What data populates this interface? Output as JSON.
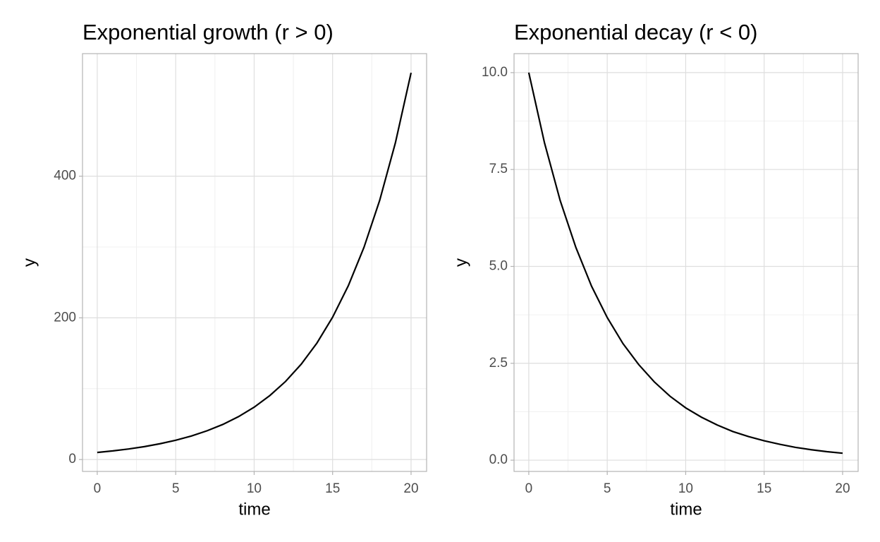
{
  "chart_data": [
    {
      "type": "line",
      "title": "Exponential growth (r > 0)",
      "x_label": "time",
      "y_label": "y",
      "x": [
        0,
        1,
        2,
        3,
        4,
        5,
        6,
        7,
        8,
        9,
        10,
        11,
        12,
        13,
        14,
        15,
        16,
        17,
        18,
        19,
        20
      ],
      "values": [
        10,
        12.2,
        14.9,
        18.2,
        22.3,
        27.2,
        33.2,
        40.6,
        49.5,
        60.5,
        73.9,
        90.3,
        110.2,
        134.6,
        164.4,
        200.9,
        245.3,
        299.6,
        365.9,
        447.0,
        546.0
      ],
      "color": "#000000",
      "xlim": [
        -0.94,
        20.99
      ],
      "ylim": [
        -16.8,
        573
      ],
      "xticks": [
        0,
        5,
        10,
        15,
        20
      ],
      "yticks": [
        0,
        200,
        400
      ],
      "grid": true
    },
    {
      "type": "line",
      "title": "Exponential decay (r < 0)",
      "x_label": "time",
      "y_label": "y",
      "x": [
        0,
        1,
        2,
        3,
        4,
        5,
        6,
        7,
        8,
        9,
        10,
        11,
        12,
        13,
        14,
        15,
        16,
        17,
        18,
        19,
        20
      ],
      "values": [
        10,
        8.19,
        6.7,
        5.49,
        4.49,
        3.68,
        3.01,
        2.47,
        2.02,
        1.65,
        1.35,
        1.11,
        0.91,
        0.74,
        0.61,
        0.5,
        0.41,
        0.33,
        0.27,
        0.22,
        0.18
      ],
      "color": "#000000",
      "xlim": [
        -0.94,
        20.99
      ],
      "ylim": [
        -0.29,
        10.49
      ],
      "xticks": [
        0,
        5,
        10,
        15,
        20
      ],
      "yticks": [
        {
          "value": 0,
          "label": "0.0"
        },
        {
          "value": 2.5,
          "label": "2.5"
        },
        {
          "value": 5,
          "label": "5.0"
        },
        {
          "value": 7.5,
          "label": "7.5"
        },
        {
          "value": 10,
          "label": "10.0"
        }
      ],
      "grid": true
    }
  ]
}
